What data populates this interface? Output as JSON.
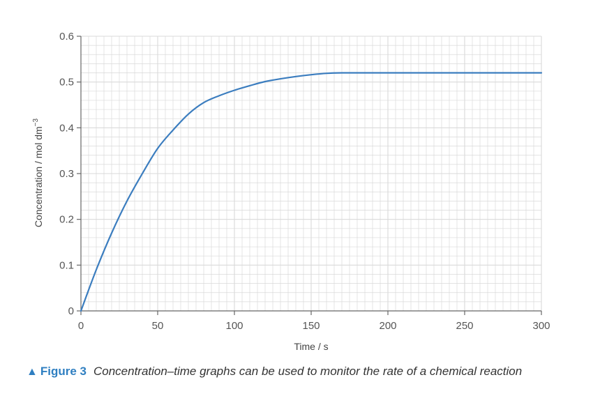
{
  "chart_data": {
    "type": "line",
    "xlabel": "Time / s",
    "ylabel": "Concentration / mol dm",
    "ylabel_superscript": "−3",
    "xlim": [
      0,
      300
    ],
    "ylim": [
      0,
      0.6
    ],
    "x_ticks": [
      "0",
      "50",
      "100",
      "150",
      "200",
      "250",
      "300"
    ],
    "y_ticks": [
      "0",
      "0.1",
      "0.2",
      "0.3",
      "0.4",
      "0.5",
      "0.6"
    ],
    "grid": true,
    "series": [
      {
        "color": "#3b7dbf",
        "points": [
          [
            0,
            0
          ],
          [
            10,
            0.09
          ],
          [
            20,
            0.17
          ],
          [
            30,
            0.24
          ],
          [
            40,
            0.3
          ],
          [
            50,
            0.355
          ],
          [
            60,
            0.395
          ],
          [
            70,
            0.43
          ],
          [
            80,
            0.455
          ],
          [
            90,
            0.47
          ],
          [
            100,
            0.482
          ],
          [
            110,
            0.492
          ],
          [
            120,
            0.501
          ],
          [
            130,
            0.507
          ],
          [
            140,
            0.512
          ],
          [
            150,
            0.516
          ],
          [
            160,
            0.519
          ],
          [
            170,
            0.52
          ],
          [
            180,
            0.52
          ],
          [
            200,
            0.52
          ],
          [
            250,
            0.52
          ],
          [
            300,
            0.52
          ]
        ]
      }
    ]
  },
  "caption": {
    "figure_label": "Figure 3",
    "text": "Concentration–time graphs can be used to monitor the rate of a chemical reaction"
  },
  "colors": {
    "accent": "#2f7fc1",
    "grid": "#d9d9d9",
    "axis": "#666666"
  }
}
